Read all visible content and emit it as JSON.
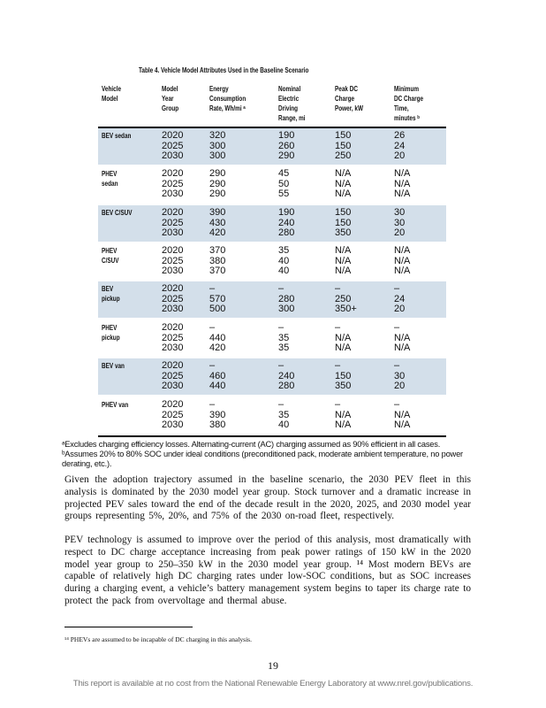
{
  "table": {
    "caption": "Table 4. Vehicle Model Attributes Used in the Baseline Scenario",
    "headers": [
      [
        "Vehicle",
        "Model"
      ],
      [
        "Model",
        "Year",
        "Group"
      ],
      [
        "Energy",
        "Consumption",
        "Rate, Wh/mi ᵃ"
      ],
      [
        "Nominal",
        "Electric",
        "Driving",
        "Range, mi"
      ],
      [
        "Peak DC",
        "Charge",
        "Power, kW"
      ],
      [
        "Minimum",
        "DC Charge",
        "Time,",
        "minutes ᵇ"
      ]
    ],
    "groups": [
      {
        "label": [
          "BEV sedan"
        ],
        "years": "2020\n2025\n2030",
        "energy": "320\n300\n300",
        "range": "190\n260\n290",
        "power": "150\n150\n250",
        "time": "26\n24\n20"
      },
      {
        "label": [
          "PHEV",
          "sedan"
        ],
        "years": "2020\n2025\n2030",
        "energy": "290\n290\n290",
        "range": "45\n50\n55",
        "power": "N/A\nN/A\nN/A",
        "time": "N/A\nN/A\nN/A"
      },
      {
        "label": [
          "BEV C/SUV"
        ],
        "years": "2020\n2025\n2030",
        "energy": "390\n430\n420",
        "range": "190\n240\n280",
        "power": "150\n150\n350",
        "time": "30\n30\n20"
      },
      {
        "label": [
          "PHEV",
          "C/SUV"
        ],
        "years": "2020\n2025\n2030",
        "energy": "370\n380\n370",
        "range": "35\n40\n40",
        "power": "N/A\nN/A\nN/A",
        "time": "N/A\nN/A\nN/A"
      },
      {
        "label": [
          "BEV",
          "pickup"
        ],
        "years": "2020\n2025\n2030",
        "energy": "–\n570\n500",
        "range": "–\n280\n300",
        "power": "–\n250\n350+",
        "time": "–\n24\n20"
      },
      {
        "label": [
          "PHEV",
          "pickup"
        ],
        "years": "2020\n2025\n2030",
        "energy": "–\n440\n420",
        "range": "–\n35\n35",
        "power": "–\nN/A\nN/A",
        "time": "–\nN/A\nN/A"
      },
      {
        "label": [
          "BEV van"
        ],
        "years": "2020\n2025\n2030",
        "energy": "–\n460\n440",
        "range": "–\n240\n280",
        "power": "–\n150\n350",
        "time": "–\n30\n20"
      },
      {
        "label": [
          "PHEV van"
        ],
        "years": "2020\n2025\n2030",
        "energy": "–\n390\n380",
        "range": "–\n35\n40",
        "power": "–\nN/A\nN/A",
        "time": "–\nN/A\nN/A"
      }
    ],
    "notes": [
      "ᵃExcludes charging efficiency losses. Alternating-current (AC) charging assumed as 90% efficient in all cases.",
      "ᵇAssumes 20% to 80% SOC under ideal conditions (preconditioned pack, moderate ambient temperature, no power derating, etc.)."
    ]
  },
  "paragraphs": [
    "Given the adoption trajectory assumed in the baseline scenario, the 2030 PEV fleet in this analysis is dominated by the 2030 model year group. Stock turnover and a dramatic increase in projected PEV sales toward the end of the decade result in the 2020, 2025, and 2030 model year groups representing 5%, 20%, and 75% of the 2030 on-road fleet, respectively.",
    "PEV technology is assumed to improve over the period of this analysis, most dramatically with respect to DC charge acceptance increasing from peak power ratings of 150 kW in the 2020 model year group to 250–350 kW in the 2030 model year group. ¹⁴ Most modern BEVs are capable of relatively high DC charging rates under low-SOC conditions, but as SOC increases during a charging event, a vehicle’s battery management system begins to taper its charge rate to protect the pack from overvoltage and thermal abuse."
  ],
  "footnote": "¹⁴ PHEVs are assumed to be incapable of DC charging in this analysis.",
  "page_number": "19",
  "availability": "This report is available at no cost from the National Renewable Energy Laboratory at www.nrel.gov/publications."
}
